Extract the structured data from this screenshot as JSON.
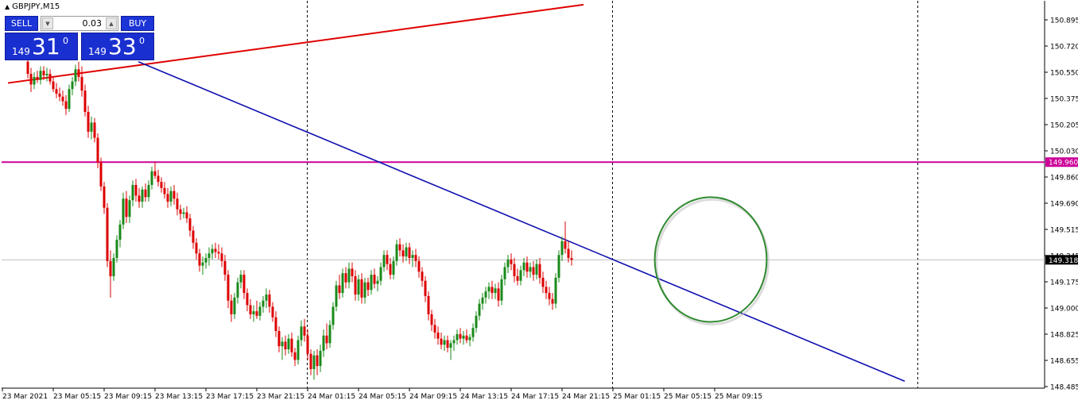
{
  "header": {
    "symbol_title": "GBPJPY,M15"
  },
  "trade_panel": {
    "sell_label": "SELL",
    "buy_label": "BUY",
    "lot_value": "0.03",
    "sell_price": {
      "prefix": "149",
      "big": "31",
      "sup": "0"
    },
    "buy_price": {
      "prefix": "149",
      "big": "33",
      "sup": "0"
    }
  },
  "colors": {
    "bull": "#1a8a1a",
    "bear": "#dd0000",
    "trend_up": "#e00000",
    "trend_down": "#1010b0",
    "hline": "#cc0099",
    "ellipse": "#2f8a2f",
    "grid": "#000000",
    "current_price_line": "#c0c0c0"
  },
  "chart_data": {
    "type": "candlestick",
    "symbol": "GBPJPY",
    "timeframe": "M15",
    "y_ticks": [
      "150.895",
      "150.720",
      "150.550",
      "150.375",
      "150.205",
      "150.030",
      "149.860",
      "149.690",
      "149.515",
      "149.345",
      "149.175",
      "149.000",
      "148.825",
      "148.655",
      "148.485"
    ],
    "y_range": [
      148.485,
      150.895
    ],
    "x_ticks": [
      "23 Mar 2021",
      "23 Mar 05:15",
      "23 Mar 09:15",
      "23 Mar 13:15",
      "23 Mar 17:15",
      "23 Mar 21:15",
      "24 Mar 01:15",
      "24 Mar 05:15",
      "24 Mar 09:15",
      "24 Mar 13:15",
      "24 Mar 17:15",
      "24 Mar 21:15",
      "25 Mar 01:15",
      "25 Mar 05:15",
      "25 Mar 09:15"
    ],
    "horizontal_line": {
      "label": "149.960",
      "value": 149.96
    },
    "current_price": {
      "label": "149.318",
      "value": 149.318
    },
    "trendlines": [
      {
        "name": "resistance-up",
        "from": {
          "time": "22 Mar 22:30",
          "price": 150.48
        },
        "to": {
          "time": "24 Mar 19:45",
          "price": 150.995
        }
      },
      {
        "name": "support-down",
        "from": {
          "time": "23 Mar 08:45",
          "price": 150.62
        },
        "to": {
          "time": "25 Mar 21:00",
          "price": 148.52
        }
      }
    ],
    "annotation_ellipse": {
      "center": {
        "time": "25 Mar 05:45",
        "price": 149.32
      },
      "time_radius_hours": 4.4,
      "price_radius": 0.41
    },
    "vertical_separators": [
      "23 Mar 22:00",
      "24 Mar 22:00",
      "25 Mar 22:00"
    ],
    "candles": [
      {
        "o": 150.62,
        "h": 150.65,
        "l": 150.51,
        "c": 150.54
      },
      {
        "o": 150.54,
        "h": 150.58,
        "l": 150.42,
        "c": 150.47
      },
      {
        "o": 150.47,
        "h": 150.55,
        "l": 150.44,
        "c": 150.52
      },
      {
        "o": 150.52,
        "h": 150.56,
        "l": 150.48,
        "c": 150.5
      },
      {
        "o": 150.5,
        "h": 150.59,
        "l": 150.47,
        "c": 150.56
      },
      {
        "o": 150.56,
        "h": 150.59,
        "l": 150.5,
        "c": 150.53
      },
      {
        "o": 150.53,
        "h": 150.58,
        "l": 150.49,
        "c": 150.54
      },
      {
        "o": 150.54,
        "h": 150.57,
        "l": 150.47,
        "c": 150.49
      },
      {
        "o": 150.49,
        "h": 150.52,
        "l": 150.42,
        "c": 150.44
      },
      {
        "o": 150.44,
        "h": 150.48,
        "l": 150.38,
        "c": 150.41
      },
      {
        "o": 150.41,
        "h": 150.45,
        "l": 150.36,
        "c": 150.39
      },
      {
        "o": 150.39,
        "h": 150.43,
        "l": 150.33,
        "c": 150.36
      },
      {
        "o": 150.36,
        "h": 150.4,
        "l": 150.27,
        "c": 150.31
      },
      {
        "o": 150.31,
        "h": 150.47,
        "l": 150.29,
        "c": 150.44
      },
      {
        "o": 150.44,
        "h": 150.52,
        "l": 150.4,
        "c": 150.49
      },
      {
        "o": 150.49,
        "h": 150.6,
        "l": 150.46,
        "c": 150.57
      },
      {
        "o": 150.57,
        "h": 150.62,
        "l": 150.49,
        "c": 150.52
      },
      {
        "o": 150.52,
        "h": 150.59,
        "l": 150.39,
        "c": 150.43
      },
      {
        "o": 150.43,
        "h": 150.47,
        "l": 150.26,
        "c": 150.29
      },
      {
        "o": 150.29,
        "h": 150.33,
        "l": 150.12,
        "c": 150.16
      },
      {
        "o": 150.16,
        "h": 150.26,
        "l": 150.11,
        "c": 150.22
      },
      {
        "o": 150.22,
        "h": 150.25,
        "l": 150.09,
        "c": 150.12
      },
      {
        "o": 150.12,
        "h": 150.15,
        "l": 149.92,
        "c": 149.96
      },
      {
        "o": 149.96,
        "h": 149.99,
        "l": 149.77,
        "c": 149.8
      },
      {
        "o": 149.8,
        "h": 149.83,
        "l": 149.62,
        "c": 149.66
      },
      {
        "o": 149.66,
        "h": 149.69,
        "l": 149.27,
        "c": 149.31
      },
      {
        "o": 149.31,
        "h": 149.38,
        "l": 149.07,
        "c": 149.21
      },
      {
        "o": 149.21,
        "h": 149.36,
        "l": 149.18,
        "c": 149.33
      },
      {
        "o": 149.33,
        "h": 149.48,
        "l": 149.3,
        "c": 149.45
      },
      {
        "o": 149.45,
        "h": 149.58,
        "l": 149.4,
        "c": 149.55
      },
      {
        "o": 149.55,
        "h": 149.76,
        "l": 149.52,
        "c": 149.72
      },
      {
        "o": 149.72,
        "h": 149.77,
        "l": 149.56,
        "c": 149.6
      },
      {
        "o": 149.6,
        "h": 149.74,
        "l": 149.56,
        "c": 149.71
      },
      {
        "o": 149.71,
        "h": 149.84,
        "l": 149.67,
        "c": 149.81
      },
      {
        "o": 149.81,
        "h": 149.85,
        "l": 149.7,
        "c": 149.74
      },
      {
        "o": 149.74,
        "h": 149.79,
        "l": 149.66,
        "c": 149.7
      },
      {
        "o": 149.7,
        "h": 149.8,
        "l": 149.66,
        "c": 149.78
      },
      {
        "o": 149.78,
        "h": 149.82,
        "l": 149.7,
        "c": 149.73
      },
      {
        "o": 149.73,
        "h": 149.84,
        "l": 149.7,
        "c": 149.81
      },
      {
        "o": 149.81,
        "h": 149.93,
        "l": 149.78,
        "c": 149.9
      },
      {
        "o": 149.9,
        "h": 149.96,
        "l": 149.85,
        "c": 149.87
      },
      {
        "o": 149.87,
        "h": 149.91,
        "l": 149.8,
        "c": 149.83
      },
      {
        "o": 149.83,
        "h": 149.86,
        "l": 149.76,
        "c": 149.79
      },
      {
        "o": 149.79,
        "h": 149.83,
        "l": 149.72,
        "c": 149.75
      },
      {
        "o": 149.75,
        "h": 149.79,
        "l": 149.66,
        "c": 149.7
      },
      {
        "o": 149.7,
        "h": 149.8,
        "l": 149.67,
        "c": 149.77
      },
      {
        "o": 149.77,
        "h": 149.81,
        "l": 149.68,
        "c": 149.72
      },
      {
        "o": 149.72,
        "h": 149.76,
        "l": 149.61,
        "c": 149.65
      },
      {
        "o": 149.65,
        "h": 149.68,
        "l": 149.58,
        "c": 149.62
      },
      {
        "o": 149.62,
        "h": 149.66,
        "l": 149.59,
        "c": 149.63
      },
      {
        "o": 149.63,
        "h": 149.67,
        "l": 149.56,
        "c": 149.59
      },
      {
        "o": 149.59,
        "h": 149.62,
        "l": 149.47,
        "c": 149.51
      },
      {
        "o": 149.51,
        "h": 149.54,
        "l": 149.39,
        "c": 149.43
      },
      {
        "o": 149.43,
        "h": 149.46,
        "l": 149.32,
        "c": 149.36
      },
      {
        "o": 149.36,
        "h": 149.39,
        "l": 149.24,
        "c": 149.28
      },
      {
        "o": 149.28,
        "h": 149.34,
        "l": 149.22,
        "c": 149.3
      },
      {
        "o": 149.3,
        "h": 149.36,
        "l": 149.26,
        "c": 149.33
      },
      {
        "o": 149.33,
        "h": 149.4,
        "l": 149.28,
        "c": 149.36
      },
      {
        "o": 149.36,
        "h": 149.42,
        "l": 149.32,
        "c": 149.39
      },
      {
        "o": 149.39,
        "h": 149.43,
        "l": 149.33,
        "c": 149.37
      },
      {
        "o": 149.37,
        "h": 149.42,
        "l": 149.32,
        "c": 149.36
      },
      {
        "o": 149.36,
        "h": 149.4,
        "l": 149.27,
        "c": 149.31
      },
      {
        "o": 149.31,
        "h": 149.35,
        "l": 149.18,
        "c": 149.22
      },
      {
        "o": 149.22,
        "h": 149.25,
        "l": 149.0,
        "c": 149.05
      },
      {
        "o": 149.05,
        "h": 149.09,
        "l": 148.91,
        "c": 148.96
      },
      {
        "o": 148.96,
        "h": 149.1,
        "l": 148.93,
        "c": 149.07
      },
      {
        "o": 149.07,
        "h": 149.2,
        "l": 149.03,
        "c": 149.17
      },
      {
        "o": 149.17,
        "h": 149.25,
        "l": 149.13,
        "c": 149.22
      },
      {
        "o": 149.22,
        "h": 149.25,
        "l": 149.06,
        "c": 149.1
      },
      {
        "o": 149.1,
        "h": 149.13,
        "l": 148.98,
        "c": 149.02
      },
      {
        "o": 149.02,
        "h": 149.06,
        "l": 148.93,
        "c": 148.96
      },
      {
        "o": 148.96,
        "h": 149.02,
        "l": 148.91,
        "c": 148.98
      },
      {
        "o": 148.98,
        "h": 149.05,
        "l": 148.93,
        "c": 148.95
      },
      {
        "o": 148.95,
        "h": 149.04,
        "l": 148.92,
        "c": 149.01
      },
      {
        "o": 149.01,
        "h": 149.08,
        "l": 148.97,
        "c": 149.05
      },
      {
        "o": 149.05,
        "h": 149.13,
        "l": 149.0,
        "c": 149.09
      },
      {
        "o": 149.09,
        "h": 149.12,
        "l": 148.97,
        "c": 149.01
      },
      {
        "o": 149.01,
        "h": 149.04,
        "l": 148.91,
        "c": 148.94
      },
      {
        "o": 148.94,
        "h": 148.98,
        "l": 148.81,
        "c": 148.85
      },
      {
        "o": 148.85,
        "h": 148.88,
        "l": 148.71,
        "c": 148.75
      },
      {
        "o": 148.75,
        "h": 148.81,
        "l": 148.66,
        "c": 148.78
      },
      {
        "o": 148.78,
        "h": 148.82,
        "l": 148.69,
        "c": 148.73
      },
      {
        "o": 148.73,
        "h": 148.83,
        "l": 148.7,
        "c": 148.8
      },
      {
        "o": 148.8,
        "h": 148.84,
        "l": 148.68,
        "c": 148.71
      },
      {
        "o": 148.71,
        "h": 148.74,
        "l": 148.62,
        "c": 148.66
      },
      {
        "o": 148.66,
        "h": 148.82,
        "l": 148.63,
        "c": 148.79
      },
      {
        "o": 148.79,
        "h": 148.92,
        "l": 148.75,
        "c": 148.88
      },
      {
        "o": 148.88,
        "h": 148.93,
        "l": 148.78,
        "c": 148.82
      },
      {
        "o": 148.82,
        "h": 148.86,
        "l": 148.66,
        "c": 148.7
      },
      {
        "o": 148.7,
        "h": 148.73,
        "l": 148.56,
        "c": 148.6
      },
      {
        "o": 148.6,
        "h": 148.72,
        "l": 148.53,
        "c": 148.69
      },
      {
        "o": 148.69,
        "h": 148.73,
        "l": 148.56,
        "c": 148.62
      },
      {
        "o": 148.62,
        "h": 148.76,
        "l": 148.58,
        "c": 148.72
      },
      {
        "o": 148.72,
        "h": 148.86,
        "l": 148.68,
        "c": 148.82
      },
      {
        "o": 148.82,
        "h": 148.9,
        "l": 148.73,
        "c": 148.77
      },
      {
        "o": 148.77,
        "h": 148.92,
        "l": 148.74,
        "c": 148.89
      },
      {
        "o": 148.89,
        "h": 149.04,
        "l": 148.86,
        "c": 149.01
      },
      {
        "o": 149.01,
        "h": 149.18,
        "l": 148.98,
        "c": 149.15
      },
      {
        "o": 149.15,
        "h": 149.22,
        "l": 149.06,
        "c": 149.1
      },
      {
        "o": 149.1,
        "h": 149.26,
        "l": 149.07,
        "c": 149.23
      },
      {
        "o": 149.23,
        "h": 149.27,
        "l": 149.13,
        "c": 149.17
      },
      {
        "o": 149.17,
        "h": 149.3,
        "l": 149.13,
        "c": 149.26
      },
      {
        "o": 149.26,
        "h": 149.3,
        "l": 149.17,
        "c": 149.21
      },
      {
        "o": 149.21,
        "h": 149.25,
        "l": 149.05,
        "c": 149.09
      },
      {
        "o": 149.09,
        "h": 149.22,
        "l": 149.05,
        "c": 149.19
      },
      {
        "o": 149.19,
        "h": 149.23,
        "l": 149.03,
        "c": 149.07
      },
      {
        "o": 149.07,
        "h": 149.2,
        "l": 149.03,
        "c": 149.17
      },
      {
        "o": 149.17,
        "h": 149.2,
        "l": 149.08,
        "c": 149.12
      },
      {
        "o": 149.12,
        "h": 149.25,
        "l": 149.09,
        "c": 149.22
      },
      {
        "o": 149.22,
        "h": 149.26,
        "l": 149.13,
        "c": 149.16
      },
      {
        "o": 149.16,
        "h": 149.21,
        "l": 149.11,
        "c": 149.18
      },
      {
        "o": 149.18,
        "h": 149.3,
        "l": 149.15,
        "c": 149.27
      },
      {
        "o": 149.27,
        "h": 149.38,
        "l": 149.24,
        "c": 149.35
      },
      {
        "o": 149.35,
        "h": 149.38,
        "l": 149.25,
        "c": 149.29
      },
      {
        "o": 149.29,
        "h": 149.33,
        "l": 149.19,
        "c": 149.22
      },
      {
        "o": 149.22,
        "h": 149.34,
        "l": 149.19,
        "c": 149.31
      },
      {
        "o": 149.31,
        "h": 149.45,
        "l": 149.28,
        "c": 149.42
      },
      {
        "o": 149.42,
        "h": 149.46,
        "l": 149.34,
        "c": 149.38
      },
      {
        "o": 149.38,
        "h": 149.42,
        "l": 149.3,
        "c": 149.34
      },
      {
        "o": 149.34,
        "h": 149.43,
        "l": 149.31,
        "c": 149.4
      },
      {
        "o": 149.4,
        "h": 149.43,
        "l": 149.29,
        "c": 149.33
      },
      {
        "o": 149.33,
        "h": 149.38,
        "l": 149.27,
        "c": 149.35
      },
      {
        "o": 149.35,
        "h": 149.39,
        "l": 149.27,
        "c": 149.31
      },
      {
        "o": 149.31,
        "h": 149.34,
        "l": 149.2,
        "c": 149.24
      },
      {
        "o": 149.24,
        "h": 149.27,
        "l": 149.14,
        "c": 149.18
      },
      {
        "o": 149.18,
        "h": 149.21,
        "l": 149.04,
        "c": 149.08
      },
      {
        "o": 149.08,
        "h": 149.11,
        "l": 148.92,
        "c": 148.96
      },
      {
        "o": 148.96,
        "h": 148.99,
        "l": 148.85,
        "c": 148.89
      },
      {
        "o": 148.89,
        "h": 148.93,
        "l": 148.8,
        "c": 148.84
      },
      {
        "o": 148.84,
        "h": 148.88,
        "l": 148.76,
        "c": 148.8
      },
      {
        "o": 148.8,
        "h": 148.84,
        "l": 148.73,
        "c": 148.76
      },
      {
        "o": 148.76,
        "h": 148.82,
        "l": 148.72,
        "c": 148.79
      },
      {
        "o": 148.79,
        "h": 148.82,
        "l": 148.71,
        "c": 148.74
      },
      {
        "o": 148.74,
        "h": 148.79,
        "l": 148.66,
        "c": 148.77
      },
      {
        "o": 148.77,
        "h": 148.82,
        "l": 148.72,
        "c": 148.79
      },
      {
        "o": 148.79,
        "h": 148.86,
        "l": 148.76,
        "c": 148.83
      },
      {
        "o": 148.83,
        "h": 148.87,
        "l": 148.77,
        "c": 148.8
      },
      {
        "o": 148.8,
        "h": 148.85,
        "l": 148.76,
        "c": 148.82
      },
      {
        "o": 148.82,
        "h": 148.86,
        "l": 148.77,
        "c": 148.79
      },
      {
        "o": 148.79,
        "h": 148.83,
        "l": 148.75,
        "c": 148.81
      },
      {
        "o": 148.81,
        "h": 148.9,
        "l": 148.78,
        "c": 148.87
      },
      {
        "o": 148.87,
        "h": 148.98,
        "l": 148.84,
        "c": 148.95
      },
      {
        "o": 148.95,
        "h": 149.06,
        "l": 148.92,
        "c": 149.03
      },
      {
        "o": 149.03,
        "h": 149.1,
        "l": 148.99,
        "c": 149.07
      },
      {
        "o": 149.07,
        "h": 149.14,
        "l": 149.03,
        "c": 149.11
      },
      {
        "o": 149.11,
        "h": 149.17,
        "l": 149.06,
        "c": 149.14
      },
      {
        "o": 149.14,
        "h": 149.18,
        "l": 149.06,
        "c": 149.1
      },
      {
        "o": 149.1,
        "h": 149.16,
        "l": 149.06,
        "c": 149.13
      },
      {
        "o": 149.13,
        "h": 149.17,
        "l": 149.01,
        "c": 149.05
      },
      {
        "o": 149.05,
        "h": 149.22,
        "l": 149.02,
        "c": 149.19
      },
      {
        "o": 149.19,
        "h": 149.3,
        "l": 149.15,
        "c": 149.27
      },
      {
        "o": 149.27,
        "h": 149.35,
        "l": 149.23,
        "c": 149.32
      },
      {
        "o": 149.32,
        "h": 149.36,
        "l": 149.25,
        "c": 149.29
      },
      {
        "o": 149.29,
        "h": 149.33,
        "l": 149.17,
        "c": 149.21
      },
      {
        "o": 149.21,
        "h": 149.26,
        "l": 149.15,
        "c": 149.18
      },
      {
        "o": 149.18,
        "h": 149.28,
        "l": 149.15,
        "c": 149.25
      },
      {
        "o": 149.25,
        "h": 149.33,
        "l": 149.21,
        "c": 149.3
      },
      {
        "o": 149.3,
        "h": 149.34,
        "l": 149.2,
        "c": 149.24
      },
      {
        "o": 149.24,
        "h": 149.3,
        "l": 149.2,
        "c": 149.27
      },
      {
        "o": 149.27,
        "h": 149.31,
        "l": 149.18,
        "c": 149.22
      },
      {
        "o": 149.22,
        "h": 149.32,
        "l": 149.19,
        "c": 149.29
      },
      {
        "o": 149.29,
        "h": 149.33,
        "l": 149.16,
        "c": 149.2
      },
      {
        "o": 149.2,
        "h": 149.24,
        "l": 149.1,
        "c": 149.14
      },
      {
        "o": 149.14,
        "h": 149.18,
        "l": 149.06,
        "c": 149.1
      },
      {
        "o": 149.1,
        "h": 149.14,
        "l": 149.02,
        "c": 149.06
      },
      {
        "o": 149.06,
        "h": 149.1,
        "l": 148.99,
        "c": 149.03
      },
      {
        "o": 149.03,
        "h": 149.23,
        "l": 149.0,
        "c": 149.2
      },
      {
        "o": 149.2,
        "h": 149.38,
        "l": 149.17,
        "c": 149.35
      },
      {
        "o": 149.35,
        "h": 149.47,
        "l": 149.31,
        "c": 149.44
      },
      {
        "o": 149.44,
        "h": 149.57,
        "l": 149.36,
        "c": 149.39
      },
      {
        "o": 149.39,
        "h": 149.44,
        "l": 149.3,
        "c": 149.33
      },
      {
        "o": 149.33,
        "h": 149.38,
        "l": 149.28,
        "c": 149.318
      }
    ]
  }
}
